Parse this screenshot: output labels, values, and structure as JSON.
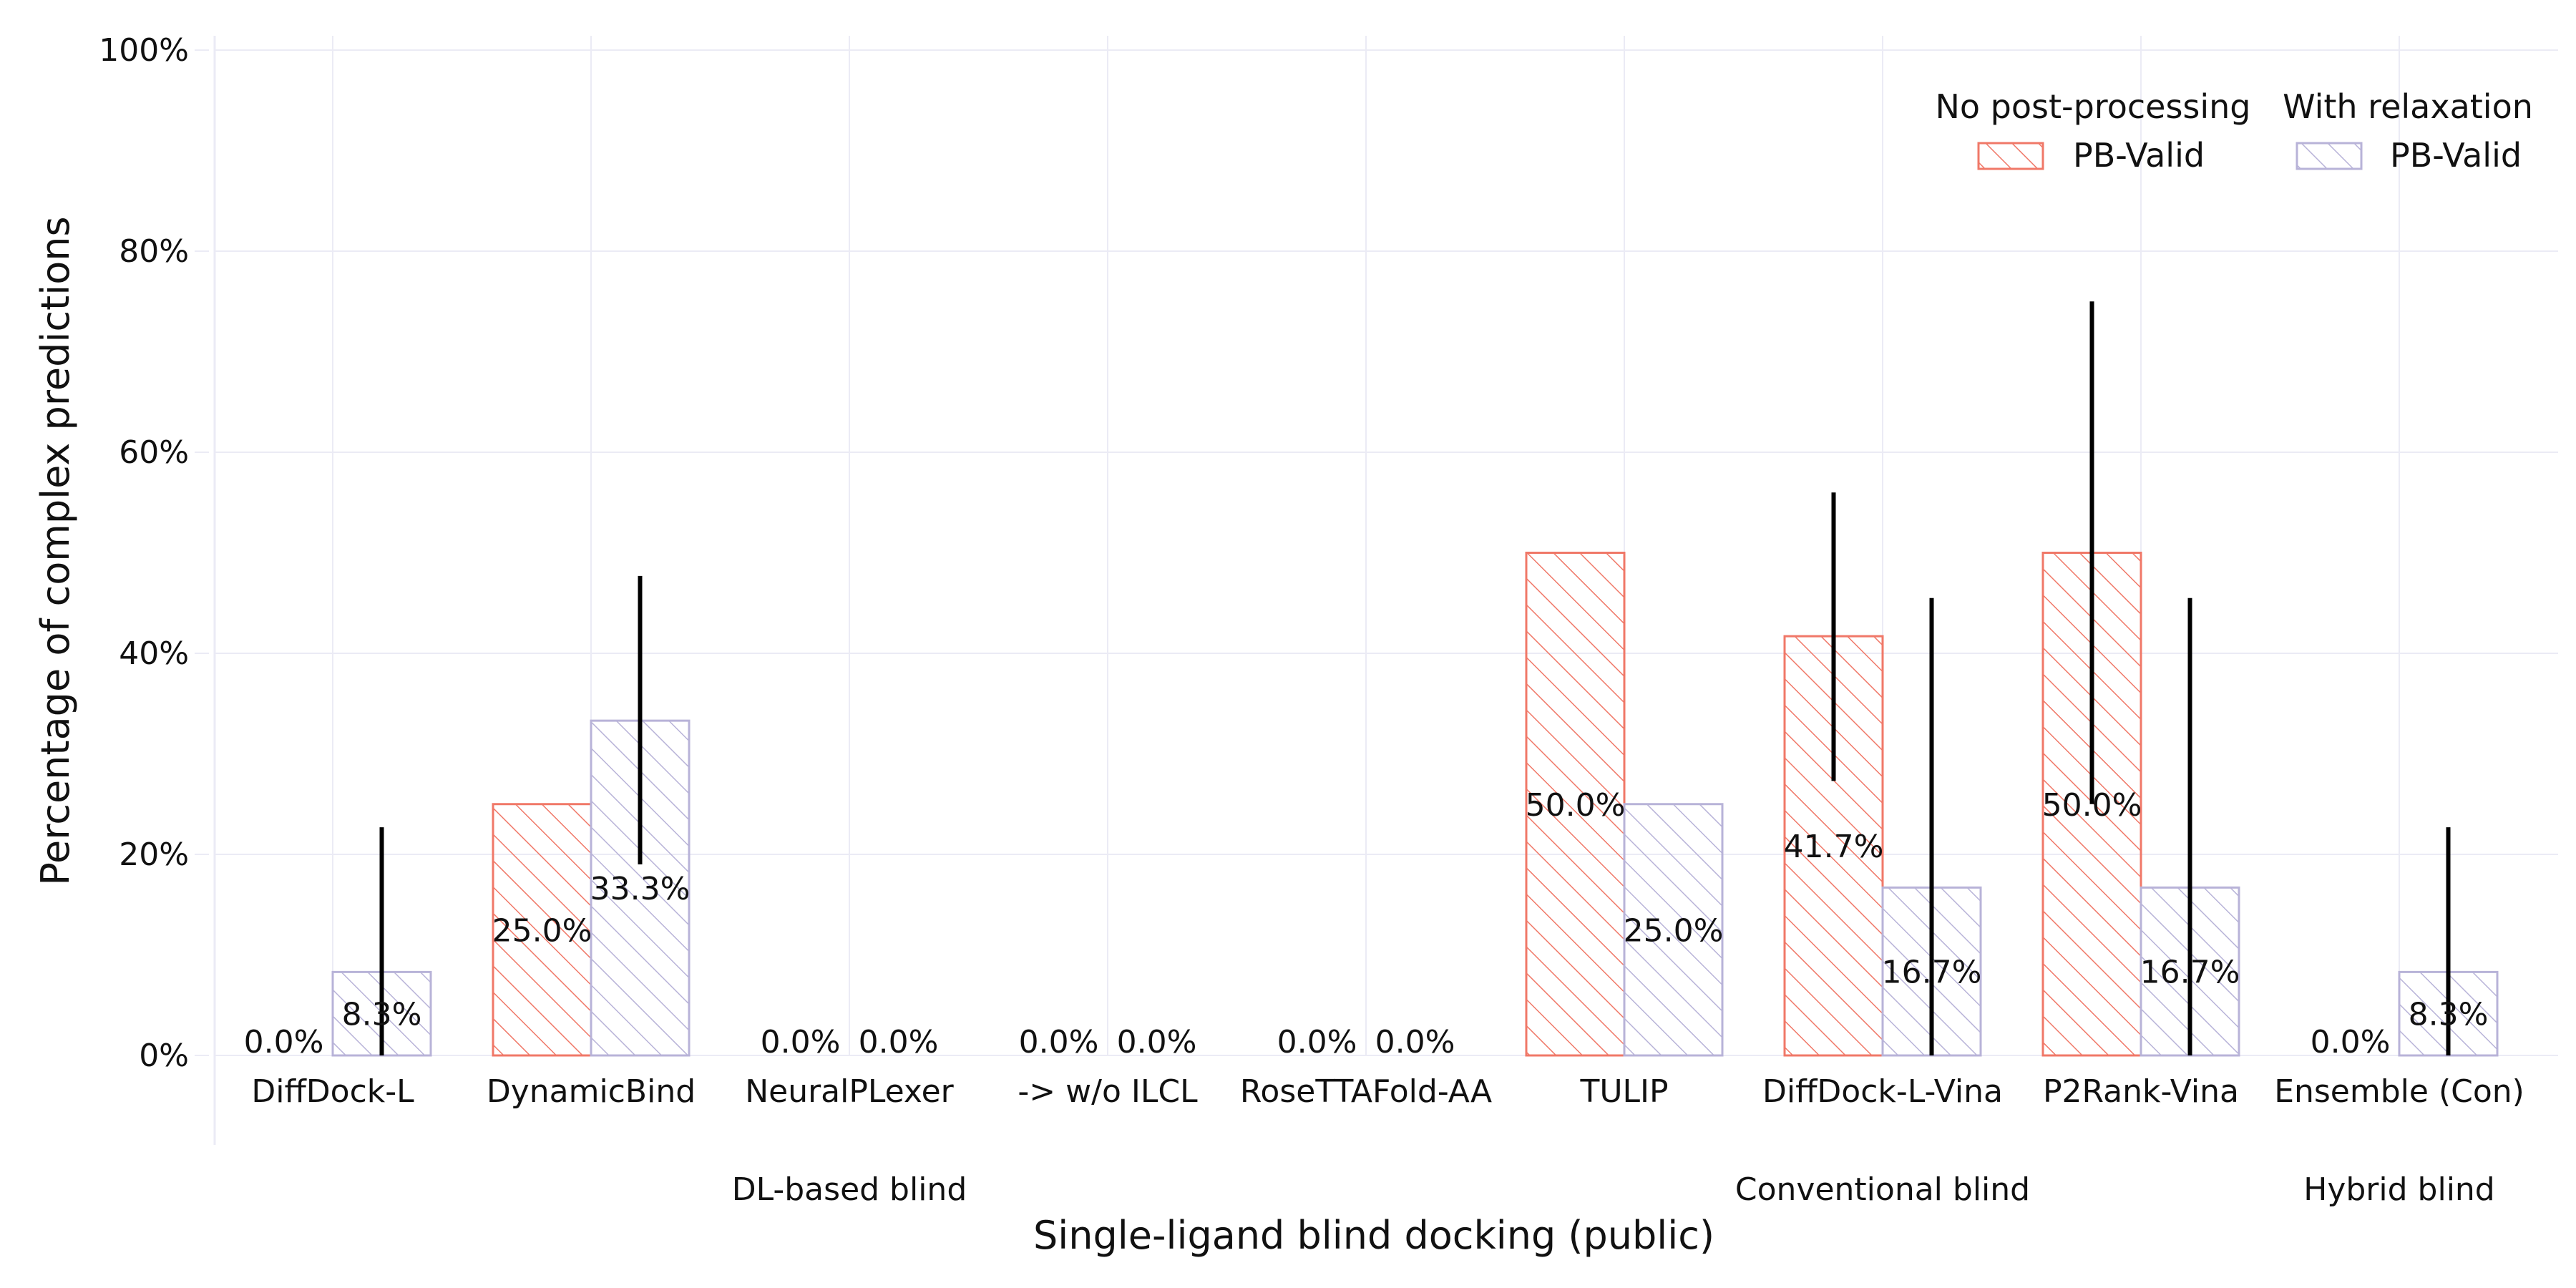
{
  "chart_data": {
    "type": "bar",
    "xlabel": "Single-ligand blind docking (public)",
    "ylabel": "Percentage of complex predictions",
    "ylim": [
      0,
      100
    ],
    "y_ticks": [
      "0%",
      "20%",
      "40%",
      "60%",
      "80%",
      "100%"
    ],
    "grid": true,
    "legend_position": "top-right",
    "categories": [
      "DiffDock-L",
      "DynamicBind",
      "NeuralPLexer",
      "->  w/o ILCL",
      "RoseTTAFold-AA",
      "TULIP",
      "DiffDock-L-Vina",
      "P2Rank-Vina",
      "Ensemble (Con)"
    ],
    "groups": [
      {
        "label": "DL-based blind",
        "start": 0,
        "end": 4
      },
      {
        "label": "Conventional blind",
        "start": 5,
        "end": 7
      },
      {
        "label": "Hybrid blind",
        "start": 8,
        "end": 8
      }
    ],
    "legend": {
      "headers": [
        "No post-processing",
        "With relaxation"
      ],
      "entries": [
        "PB-Valid",
        "PB-Valid"
      ]
    },
    "series": [
      {
        "name": "PB-Valid",
        "group": "No post-processing",
        "color": "#f07868",
        "values": [
          0.0,
          25.0,
          0.0,
          0.0,
          0.0,
          50.0,
          41.7,
          50.0,
          0.0
        ],
        "labels": [
          "0.0%",
          "25.0%",
          "0.0%",
          "0.0%",
          "0.0%",
          "50.0%",
          "41.7%",
          "50.0%",
          "0.0%"
        ],
        "error": [
          null,
          null,
          null,
          null,
          null,
          null,
          [
            27.3,
            56.0
          ],
          [
            25.0,
            75.0
          ],
          null
        ]
      },
      {
        "name": "PB-Valid",
        "group": "With relaxation",
        "color": "#b8b3d8",
        "values": [
          8.3,
          33.3,
          0.0,
          0.0,
          0.0,
          25.0,
          16.7,
          16.7,
          8.3
        ],
        "labels": [
          "8.3%",
          "33.3%",
          "0.0%",
          "0.0%",
          "0.0%",
          "25.0%",
          "16.7%",
          "16.7%",
          "8.3%"
        ],
        "error": [
          [
            0.0,
            22.7
          ],
          [
            19.0,
            47.7
          ],
          null,
          null,
          null,
          null,
          [
            0.0,
            45.5
          ],
          [
            0.0,
            45.5
          ],
          [
            0.0,
            22.7
          ]
        ]
      }
    ]
  }
}
